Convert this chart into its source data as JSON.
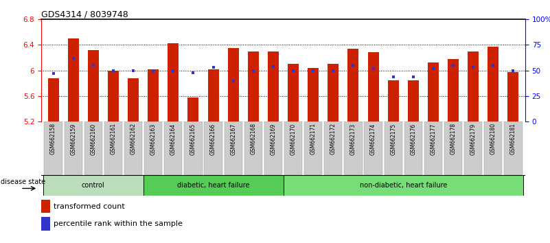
{
  "title": "GDS4314 / 8039748",
  "samples": [
    "GSM662158",
    "GSM662159",
    "GSM662160",
    "GSM662161",
    "GSM662162",
    "GSM662163",
    "GSM662164",
    "GSM662165",
    "GSM662166",
    "GSM662167",
    "GSM662168",
    "GSM662169",
    "GSM662170",
    "GSM662171",
    "GSM662172",
    "GSM662173",
    "GSM662174",
    "GSM662175",
    "GSM662176",
    "GSM662177",
    "GSM662178",
    "GSM662179",
    "GSM662180",
    "GSM662181"
  ],
  "red_values": [
    5.88,
    6.5,
    6.32,
    6.0,
    5.88,
    6.02,
    6.43,
    5.58,
    6.02,
    6.35,
    6.3,
    6.3,
    6.1,
    6.04,
    6.1,
    6.34,
    6.29,
    5.85,
    5.85,
    6.13,
    6.18,
    6.3,
    6.37,
    5.98
  ],
  "blue_values": [
    47,
    62,
    55,
    50,
    50,
    50,
    50,
    48,
    53,
    40,
    50,
    54,
    50,
    50,
    50,
    55,
    52,
    44,
    44,
    52,
    55,
    53,
    55,
    50
  ],
  "ylim_left": [
    5.2,
    6.8
  ],
  "ylim_right": [
    0,
    100
  ],
  "yticks_left": [
    5.2,
    5.6,
    6.0,
    6.4,
    6.8
  ],
  "ytick_labels_left": [
    "5.2",
    "5.6",
    "6",
    "6.4",
    "6.8"
  ],
  "yticks_right": [
    0,
    25,
    50,
    75,
    100
  ],
  "ytick_labels_right": [
    "0",
    "25",
    "50",
    "75",
    "100%"
  ],
  "bar_color": "#cc2200",
  "blue_color": "#3333cc",
  "group_defs": [
    {
      "label": "control",
      "start": 0,
      "end": 4,
      "color": "#bbddbb"
    },
    {
      "label": "diabetic, heart failure",
      "start": 5,
      "end": 11,
      "color": "#55cc55"
    },
    {
      "label": "non-diabetic, heart failure",
      "start": 12,
      "end": 23,
      "color": "#77dd77"
    }
  ],
  "legend_transformed": "transformed count",
  "legend_percentile": "percentile rank within the sample",
  "disease_state_label": "disease state"
}
